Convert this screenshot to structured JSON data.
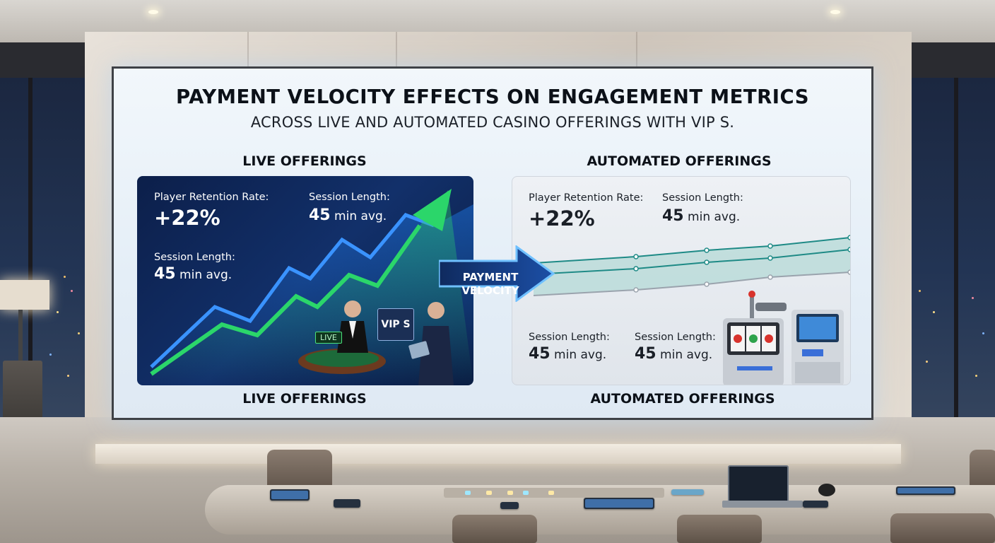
{
  "screen": {
    "title": "PAYMENT VELOCITY EFFECTS ON ENGAGEMENT METRICS",
    "subtitle": "ACROSS LIVE AND AUTOMATED CASINO OFFERINGS WITH VIP S.",
    "live": {
      "heading": "LIVE OFFERINGS",
      "footer": "LIVE OFFERINGS",
      "retention_label": "Player Retention Rate:",
      "retention_value": "+22%",
      "session_label_top": "Session Length:",
      "session_value_top_num": "45",
      "session_value_top_unit": "min avg.",
      "session_label_bottom": "Session Length:",
      "session_value_bottom_num": "45",
      "session_value_bottom_unit": "min avg.",
      "badge": "LIVE",
      "vip": "VIP S"
    },
    "center": {
      "line1": "PAYMENT",
      "line2": "VELOCITY"
    },
    "automated": {
      "heading": "AUTOMATED OFFERINGS",
      "footer": "AUTOMATED OFFERINGS",
      "retention_label": "Player Retention Rate:",
      "retention_value": "+22%",
      "session_label_top": "Session Length:",
      "session_value_top_num": "45",
      "session_value_top_unit": "min avg.",
      "session_label_bl": "Session Length:",
      "session_value_bl_num": "45",
      "session_value_bl_unit": "min avg.",
      "session_label_br": "Session Length:",
      "session_value_br_num": "45",
      "session_value_br_unit": "min avg."
    }
  },
  "colors": {
    "live_panel": "#0c1f4a",
    "live_line_blue": "#1f7df0",
    "live_line_green": "#2bd66a",
    "auto_panel": "#e6eaef",
    "auto_line": "#1e8a86",
    "arrow": "#173a7a"
  },
  "icons": [
    "upward-trend-arrow-icon",
    "payment-velocity-arrow-icon",
    "roulette-table-icon",
    "slot-machine-icon",
    "kiosk-icon"
  ]
}
